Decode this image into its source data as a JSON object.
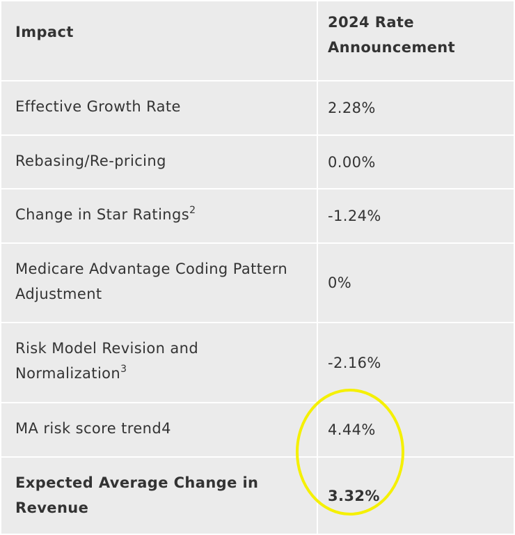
{
  "table": {
    "header": [
      "Impact",
      "2024 Rate Announcement"
    ],
    "rows": [
      {
        "impact": "Effective Growth Rate",
        "value": "2.28%"
      },
      {
        "impact": "Rebasing/Re-pricing",
        "value": "0.00%"
      },
      {
        "impact": "Change in Star Ratings",
        "footnote": "2",
        "value": "-1.24%"
      },
      {
        "impact": "Medicare Advantage Coding Pattern Adjustment",
        "value": "0%"
      },
      {
        "impact": "Risk Model Revision and Normalization",
        "footnote": "3",
        "value": "-2.16%"
      },
      {
        "impact": "MA risk score trend4",
        "value": "4.44%"
      },
      {
        "impact": "Expected Average Change in Revenue",
        "value": "3.32%",
        "bold": true
      }
    ]
  }
}
